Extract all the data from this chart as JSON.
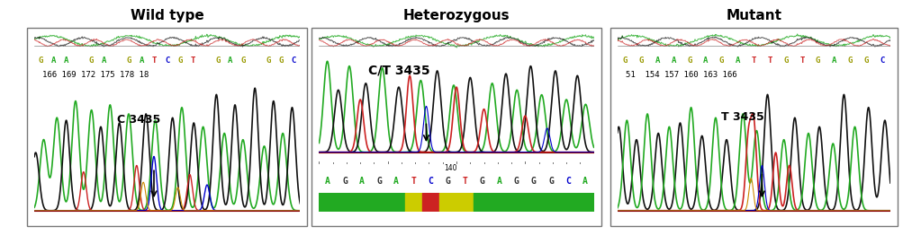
{
  "title_left": "Wild type",
  "title_mid": "Heterozygous",
  "title_right": "Mutant",
  "label_left": "C 3435",
  "label_mid": "C/T 3435",
  "label_right": "T 3435",
  "seq_line1_left": "GAA GA GAT CGT GAG GGC",
  "seq_line2_left": "166 169 172 175 178 18",
  "seq_line1_right": "GGA A GA GA T T GT GAGG C",
  "seq_line2_right": "51  154 157 160 163 166",
  "seq_mid_bases": "AGAGATCGTGAGGGCA",
  "num_mid": "140",
  "bg_color": "#ffffff",
  "panel_edge_color": "#888888",
  "green": "#22aa22",
  "black": "#111111",
  "red": "#cc2222",
  "blue": "#0000cc",
  "darkred": "#880000"
}
